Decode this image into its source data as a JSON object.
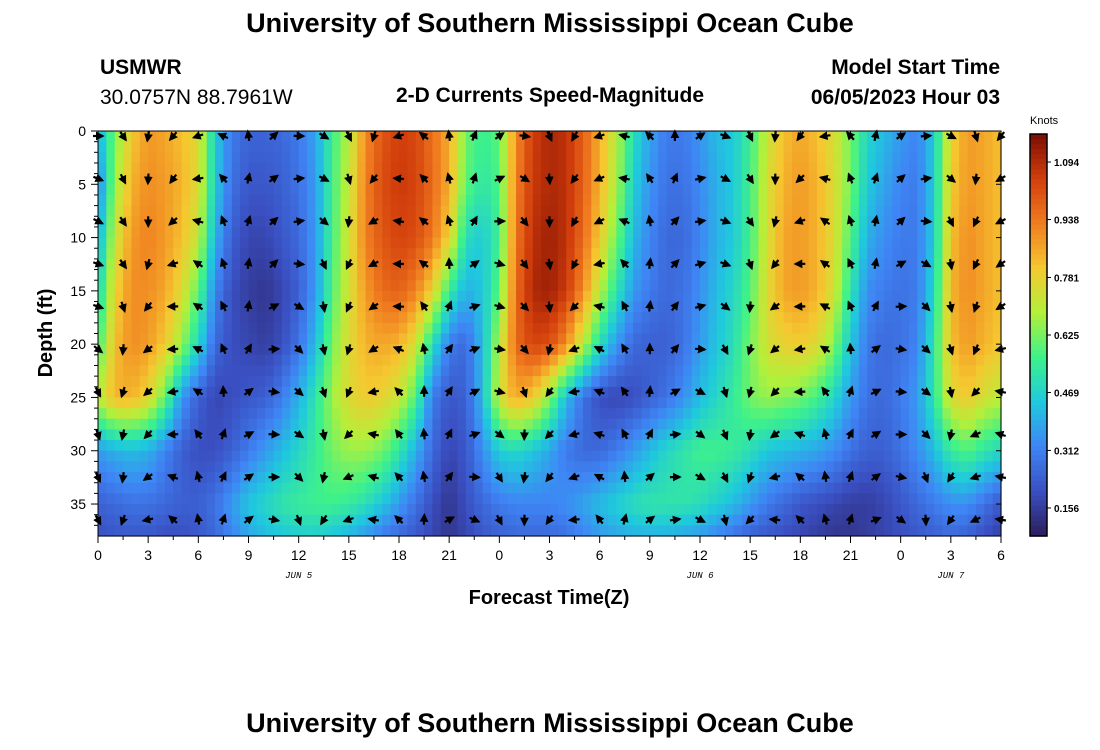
{
  "header": {
    "title": "University of Southern Mississippi Ocean Cube",
    "station": "USMWR",
    "coords": "30.0757N  88.7961W",
    "subtitle": "2-D Currents Speed-Magnitude",
    "model_label": "Model Start Time",
    "model_value": "06/05/2023 Hour 03",
    "footer_title": "University of Southern Mississippi Ocean Cube"
  },
  "chart_data": {
    "type": "heatmap",
    "title": "2-D Currents Speed-Magnitude",
    "xlabel": "Forecast Time(Z)",
    "ylabel": "Depth (ft)",
    "colorbar_label": "Knots",
    "x_range_hours": [
      0,
      54
    ],
    "y_range_ft": [
      0,
      38
    ],
    "y_inverted": true,
    "x_ticks": [
      "0",
      "3",
      "6",
      "9",
      "12",
      "15",
      "18",
      "21",
      "0",
      "3",
      "6",
      "9",
      "12",
      "15",
      "18",
      "21",
      "0",
      "3",
      "6"
    ],
    "y_ticks": [
      0,
      5,
      10,
      15,
      20,
      25,
      30,
      35
    ],
    "date_labels": [
      {
        "label": "JUN 5",
        "hour": 12
      },
      {
        "label": "JUN 6",
        "hour": 36
      },
      {
        "label": "JUN 7",
        "hour": 51
      }
    ],
    "colorbar_ticks": [
      "1.094",
      "0.938",
      "0.781",
      "0.625",
      "0.469",
      "0.312",
      "0.156"
    ],
    "colorbar_range": [
      0.08,
      1.17
    ],
    "colormap": [
      "#2b1e5c",
      "#3a4fc1",
      "#3f85f5",
      "#1fc9dd",
      "#3ef28a",
      "#b3f03a",
      "#f5c830",
      "#f07c20",
      "#d23e0c",
      "#7a0d03"
    ],
    "speed_rows": {
      "depths_ft": [
        0,
        5,
        10,
        15,
        20,
        25,
        30,
        35,
        38
      ],
      "hours": [
        0,
        1,
        2,
        3,
        4,
        5,
        6,
        7,
        8,
        9,
        10,
        11,
        12,
        13,
        14,
        15,
        16,
        17,
        18,
        19,
        20,
        21,
        22,
        23,
        24,
        25,
        26,
        27,
        28,
        29,
        30,
        31,
        32,
        33,
        34,
        35,
        36,
        37,
        38,
        39,
        40,
        41,
        42,
        43,
        44,
        45,
        46,
        47,
        48,
        49,
        50,
        51,
        52,
        53,
        54
      ],
      "values": [
        [
          0.4,
          0.62,
          0.8,
          0.88,
          0.86,
          0.82,
          0.76,
          0.45,
          0.3,
          0.25,
          0.25,
          0.26,
          0.3,
          0.38,
          0.55,
          0.7,
          0.9,
          1.0,
          1.05,
          1.03,
          0.95,
          0.85,
          0.62,
          0.55,
          0.6,
          0.9,
          1.05,
          1.1,
          1.08,
          0.98,
          0.85,
          0.7,
          0.5,
          0.38,
          0.3,
          0.3,
          0.35,
          0.42,
          0.45,
          0.55,
          0.72,
          0.82,
          0.86,
          0.82,
          0.75,
          0.62,
          0.48,
          0.42,
          0.36,
          0.32,
          0.45,
          0.78,
          0.88,
          0.86,
          0.82
        ],
        [
          0.3,
          0.66,
          0.84,
          0.9,
          0.88,
          0.84,
          0.76,
          0.45,
          0.28,
          0.22,
          0.22,
          0.24,
          0.28,
          0.36,
          0.56,
          0.72,
          0.92,
          1.02,
          1.06,
          1.04,
          0.96,
          0.85,
          0.6,
          0.52,
          0.58,
          0.92,
          1.06,
          1.1,
          1.08,
          0.98,
          0.84,
          0.68,
          0.46,
          0.35,
          0.28,
          0.28,
          0.33,
          0.4,
          0.45,
          0.56,
          0.74,
          0.84,
          0.88,
          0.84,
          0.76,
          0.62,
          0.45,
          0.38,
          0.32,
          0.3,
          0.45,
          0.8,
          0.88,
          0.86,
          0.82
        ],
        [
          0.38,
          0.72,
          0.88,
          0.92,
          0.88,
          0.82,
          0.72,
          0.4,
          0.24,
          0.18,
          0.18,
          0.22,
          0.26,
          0.36,
          0.56,
          0.74,
          0.92,
          1.0,
          1.04,
          1.02,
          0.94,
          0.78,
          0.5,
          0.45,
          0.56,
          0.94,
          1.08,
          1.12,
          1.08,
          0.96,
          0.8,
          0.62,
          0.42,
          0.32,
          0.26,
          0.26,
          0.32,
          0.4,
          0.45,
          0.56,
          0.74,
          0.86,
          0.88,
          0.84,
          0.76,
          0.58,
          0.4,
          0.34,
          0.3,
          0.3,
          0.45,
          0.82,
          0.9,
          0.86,
          0.82
        ],
        [
          0.46,
          0.78,
          0.9,
          0.9,
          0.86,
          0.76,
          0.6,
          0.32,
          0.2,
          0.16,
          0.14,
          0.18,
          0.24,
          0.36,
          0.58,
          0.74,
          0.88,
          0.96,
          0.98,
          0.92,
          0.78,
          0.54,
          0.4,
          0.44,
          0.6,
          0.96,
          1.1,
          1.12,
          1.06,
          0.9,
          0.7,
          0.52,
          0.36,
          0.3,
          0.26,
          0.28,
          0.34,
          0.42,
          0.48,
          0.58,
          0.76,
          0.86,
          0.88,
          0.84,
          0.74,
          0.52,
          0.34,
          0.3,
          0.28,
          0.3,
          0.48,
          0.84,
          0.9,
          0.86,
          0.82
        ],
        [
          0.55,
          0.82,
          0.9,
          0.88,
          0.8,
          0.66,
          0.48,
          0.26,
          0.2,
          0.18,
          0.16,
          0.2,
          0.28,
          0.42,
          0.62,
          0.76,
          0.84,
          0.86,
          0.84,
          0.74,
          0.5,
          0.3,
          0.26,
          0.42,
          0.7,
          0.96,
          1.04,
          1.02,
          0.9,
          0.7,
          0.5,
          0.36,
          0.26,
          0.24,
          0.24,
          0.28,
          0.36,
          0.44,
          0.5,
          0.62,
          0.74,
          0.78,
          0.8,
          0.76,
          0.64,
          0.44,
          0.3,
          0.26,
          0.28,
          0.32,
          0.52,
          0.82,
          0.88,
          0.84,
          0.8
        ],
        [
          0.7,
          0.84,
          0.84,
          0.78,
          0.6,
          0.36,
          0.24,
          0.18,
          0.2,
          0.22,
          0.24,
          0.3,
          0.4,
          0.52,
          0.66,
          0.76,
          0.8,
          0.78,
          0.72,
          0.58,
          0.3,
          0.22,
          0.24,
          0.42,
          0.74,
          0.86,
          0.8,
          0.64,
          0.42,
          0.28,
          0.2,
          0.18,
          0.2,
          0.24,
          0.28,
          0.34,
          0.42,
          0.48,
          0.54,
          0.62,
          0.66,
          0.64,
          0.62,
          0.56,
          0.48,
          0.36,
          0.28,
          0.26,
          0.3,
          0.36,
          0.52,
          0.76,
          0.8,
          0.74,
          0.7
        ],
        [
          0.36,
          0.4,
          0.42,
          0.4,
          0.32,
          0.24,
          0.2,
          0.2,
          0.24,
          0.3,
          0.36,
          0.42,
          0.48,
          0.54,
          0.62,
          0.66,
          0.66,
          0.62,
          0.52,
          0.4,
          0.26,
          0.18,
          0.22,
          0.34,
          0.46,
          0.48,
          0.44,
          0.38,
          0.3,
          0.26,
          0.26,
          0.3,
          0.36,
          0.42,
          0.48,
          0.52,
          0.56,
          0.56,
          0.54,
          0.5,
          0.44,
          0.42,
          0.4,
          0.38,
          0.34,
          0.28,
          0.24,
          0.24,
          0.28,
          0.34,
          0.42,
          0.54,
          0.58,
          0.52,
          0.48
        ],
        [
          0.24,
          0.26,
          0.28,
          0.28,
          0.26,
          0.24,
          0.24,
          0.28,
          0.36,
          0.44,
          0.48,
          0.52,
          0.54,
          0.56,
          0.56,
          0.54,
          0.5,
          0.44,
          0.36,
          0.28,
          0.2,
          0.14,
          0.2,
          0.26,
          0.3,
          0.32,
          0.32,
          0.32,
          0.34,
          0.38,
          0.42,
          0.46,
          0.5,
          0.52,
          0.52,
          0.52,
          0.5,
          0.46,
          0.42,
          0.36,
          0.3,
          0.26,
          0.22,
          0.2,
          0.18,
          0.16,
          0.16,
          0.18,
          0.22,
          0.26,
          0.3,
          0.34,
          0.34,
          0.28,
          0.22
        ],
        [
          0.2,
          0.22,
          0.22,
          0.22,
          0.2,
          0.2,
          0.22,
          0.26,
          0.32,
          0.38,
          0.42,
          0.44,
          0.46,
          0.46,
          0.44,
          0.4,
          0.36,
          0.3,
          0.26,
          0.22,
          0.18,
          0.14,
          0.18,
          0.22,
          0.24,
          0.26,
          0.26,
          0.26,
          0.28,
          0.32,
          0.36,
          0.38,
          0.4,
          0.4,
          0.4,
          0.38,
          0.36,
          0.32,
          0.28,
          0.24,
          0.22,
          0.2,
          0.18,
          0.16,
          0.14,
          0.14,
          0.16,
          0.18,
          0.2,
          0.22,
          0.24,
          0.26,
          0.24,
          0.2,
          0.16
        ]
      ]
    },
    "vectors_note": "current direction arrows every 1.5 h and ~4 ft"
  }
}
